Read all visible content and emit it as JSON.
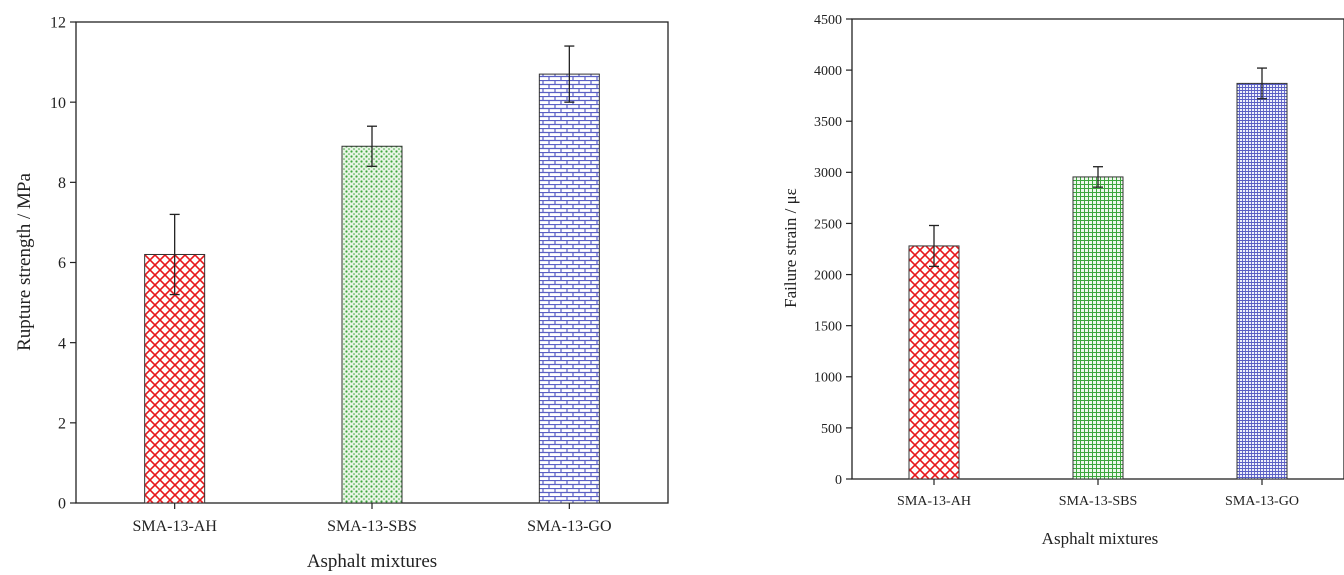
{
  "chart_data": [
    {
      "type": "bar",
      "categories": [
        "SMA-13-AH",
        "SMA-13-SBS",
        "SMA-13-GO"
      ],
      "values": [
        6.2,
        8.9,
        10.7
      ],
      "errors": [
        1.0,
        0.5,
        0.7
      ],
      "xlabel": "Asphalt mixtures",
      "ylabel": "Rupture strength / MPa",
      "ylim": [
        0,
        12
      ],
      "yticks": [
        "0",
        "2",
        "4",
        "6",
        "8",
        "10",
        "12"
      ],
      "grid": false,
      "colors": [
        "#e8171c",
        "#3ca63c",
        "#5a5fc4"
      ],
      "patterns": [
        "crosshatch",
        "dots",
        "brick"
      ]
    },
    {
      "type": "bar",
      "categories": [
        "SMA-13-AH",
        "SMA-13-SBS",
        "SMA-13-GO"
      ],
      "values": [
        2280,
        2955,
        3870
      ],
      "errors": [
        200,
        100,
        150
      ],
      "xlabel": "Asphalt mixtures",
      "ylabel": "Failure strain / με",
      "ylim": [
        0,
        4500
      ],
      "yticks": [
        "0",
        "500",
        "1000",
        "1500",
        "2000",
        "2500",
        "3000",
        "3500",
        "4000",
        "4500"
      ],
      "grid": false,
      "colors": [
        "#e8171c",
        "#3ca63c",
        "#5a5fc4"
      ],
      "patterns": [
        "crosshatch",
        "grid",
        "fine-grid"
      ]
    }
  ]
}
